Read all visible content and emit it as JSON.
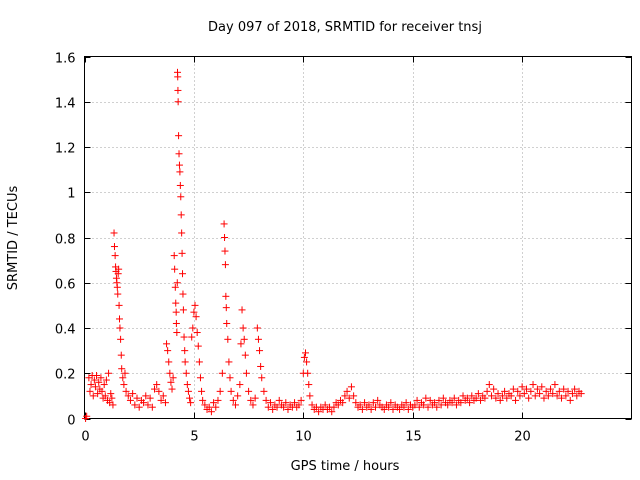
{
  "chart_data": {
    "type": "scatter",
    "title": "Day 097 of 2018, SRMTID for receiver tnsj",
    "xlabel": "GPS time / hours",
    "ylabel": "SRMTID / TECUs",
    "xlim": [
      0,
      25
    ],
    "ylim": [
      0,
      1.6
    ],
    "xticks": [
      0,
      5,
      10,
      15,
      20
    ],
    "xtick_labels": [
      "0",
      "5",
      "10",
      "15",
      "20"
    ],
    "yticks": [
      0,
      0.2,
      0.4,
      0.6,
      0.8,
      1,
      1.2,
      1.4,
      1.6
    ],
    "ytick_labels": [
      "0",
      "0.2",
      "0.4",
      "0.6",
      "0.8",
      "1",
      "1.2",
      "1.4",
      "1.6"
    ],
    "grid": true,
    "marker": "+",
    "marker_color": "#ff0000",
    "series": [
      {
        "name": "SRMTID",
        "points": [
          [
            0.05,
            0.0
          ],
          [
            0.1,
            0.01
          ],
          [
            0.2,
            0.18
          ],
          [
            0.25,
            0.12
          ],
          [
            0.3,
            0.15
          ],
          [
            0.35,
            0.19
          ],
          [
            0.4,
            0.1
          ],
          [
            0.45,
            0.17
          ],
          [
            0.5,
            0.14
          ],
          [
            0.55,
            0.19
          ],
          [
            0.6,
            0.11
          ],
          [
            0.65,
            0.16
          ],
          [
            0.7,
            0.13
          ],
          [
            0.75,
            0.18
          ],
          [
            0.8,
            0.12
          ],
          [
            0.85,
            0.09
          ],
          [
            0.9,
            0.15
          ],
          [
            0.95,
            0.1
          ],
          [
            1.0,
            0.17
          ],
          [
            1.05,
            0.08
          ],
          [
            1.1,
            0.2
          ],
          [
            1.15,
            0.07
          ],
          [
            1.2,
            0.11
          ],
          [
            1.25,
            0.09
          ],
          [
            1.3,
            0.06
          ],
          [
            1.35,
            0.82
          ],
          [
            1.37,
            0.76
          ],
          [
            1.4,
            0.72
          ],
          [
            1.42,
            0.67
          ],
          [
            1.44,
            0.65
          ],
          [
            1.46,
            0.62
          ],
          [
            1.48,
            0.6
          ],
          [
            1.5,
            0.58
          ],
          [
            1.52,
            0.55
          ],
          [
            1.54,
            0.64
          ],
          [
            1.56,
            0.66
          ],
          [
            1.58,
            0.5
          ],
          [
            1.6,
            0.44
          ],
          [
            1.62,
            0.4
          ],
          [
            1.65,
            0.35
          ],
          [
            1.68,
            0.28
          ],
          [
            1.7,
            0.22
          ],
          [
            1.75,
            0.18
          ],
          [
            1.8,
            0.15
          ],
          [
            1.85,
            0.2
          ],
          [
            1.9,
            0.12
          ],
          [
            2.0,
            0.1
          ],
          [
            2.1,
            0.08
          ],
          [
            2.2,
            0.11
          ],
          [
            2.3,
            0.06
          ],
          [
            2.4,
            0.09
          ],
          [
            2.5,
            0.05
          ],
          [
            2.6,
            0.08
          ],
          [
            2.7,
            0.07
          ],
          [
            2.8,
            0.1
          ],
          [
            2.9,
            0.06
          ],
          [
            3.0,
            0.09
          ],
          [
            3.1,
            0.05
          ],
          [
            3.2,
            0.13
          ],
          [
            3.3,
            0.15
          ],
          [
            3.4,
            0.12
          ],
          [
            3.5,
            0.08
          ],
          [
            3.6,
            0.1
          ],
          [
            3.7,
            0.07
          ],
          [
            3.75,
            0.33
          ],
          [
            3.8,
            0.3
          ],
          [
            3.85,
            0.25
          ],
          [
            3.9,
            0.2
          ],
          [
            3.95,
            0.16
          ],
          [
            4.0,
            0.13
          ],
          [
            4.05,
            0.18
          ],
          [
            4.1,
            0.72
          ],
          [
            4.12,
            0.66
          ],
          [
            4.15,
            0.58
          ],
          [
            4.17,
            0.51
          ],
          [
            4.19,
            0.47
          ],
          [
            4.2,
            0.42
          ],
          [
            4.22,
            0.38
          ],
          [
            4.24,
            0.6
          ],
          [
            4.25,
            1.53
          ],
          [
            4.26,
            1.51
          ],
          [
            4.27,
            1.45
          ],
          [
            4.28,
            1.4
          ],
          [
            4.3,
            1.25
          ],
          [
            4.32,
            1.17
          ],
          [
            4.34,
            1.12
          ],
          [
            4.36,
            1.09
          ],
          [
            4.38,
            1.03
          ],
          [
            4.4,
            0.98
          ],
          [
            4.42,
            0.9
          ],
          [
            4.44,
            0.82
          ],
          [
            4.46,
            0.73
          ],
          [
            4.48,
            0.64
          ],
          [
            4.5,
            0.55
          ],
          [
            4.52,
            0.48
          ],
          [
            4.55,
            0.36
          ],
          [
            4.58,
            0.3
          ],
          [
            4.6,
            0.25
          ],
          [
            4.65,
            0.2
          ],
          [
            4.7,
            0.15
          ],
          [
            4.75,
            0.12
          ],
          [
            4.8,
            0.09
          ],
          [
            4.85,
            0.07
          ],
          [
            4.9,
            0.36
          ],
          [
            4.95,
            0.4
          ],
          [
            5.0,
            0.47
          ],
          [
            5.05,
            0.5
          ],
          [
            5.1,
            0.45
          ],
          [
            5.15,
            0.38
          ],
          [
            5.2,
            0.32
          ],
          [
            5.25,
            0.25
          ],
          [
            5.3,
            0.18
          ],
          [
            5.35,
            0.12
          ],
          [
            5.4,
            0.08
          ],
          [
            5.5,
            0.06
          ],
          [
            5.6,
            0.04
          ],
          [
            5.7,
            0.05
          ],
          [
            5.8,
            0.03
          ],
          [
            5.9,
            0.07
          ],
          [
            6.0,
            0.05
          ],
          [
            6.1,
            0.08
          ],
          [
            6.2,
            0.12
          ],
          [
            6.3,
            0.2
          ],
          [
            6.38,
            0.86
          ],
          [
            6.4,
            0.8
          ],
          [
            6.42,
            0.74
          ],
          [
            6.44,
            0.68
          ],
          [
            6.46,
            0.54
          ],
          [
            6.48,
            0.49
          ],
          [
            6.5,
            0.42
          ],
          [
            6.55,
            0.35
          ],
          [
            6.6,
            0.25
          ],
          [
            6.65,
            0.18
          ],
          [
            6.7,
            0.12
          ],
          [
            6.8,
            0.08
          ],
          [
            6.9,
            0.06
          ],
          [
            7.0,
            0.1
          ],
          [
            7.1,
            0.15
          ],
          [
            7.15,
            0.33
          ],
          [
            7.2,
            0.48
          ],
          [
            7.25,
            0.4
          ],
          [
            7.3,
            0.35
          ],
          [
            7.35,
            0.28
          ],
          [
            7.4,
            0.2
          ],
          [
            7.5,
            0.12
          ],
          [
            7.6,
            0.08
          ],
          [
            7.7,
            0.06
          ],
          [
            7.8,
            0.09
          ],
          [
            7.9,
            0.4
          ],
          [
            7.95,
            0.35
          ],
          [
            8.0,
            0.3
          ],
          [
            8.05,
            0.23
          ],
          [
            8.1,
            0.18
          ],
          [
            8.2,
            0.12
          ],
          [
            8.3,
            0.08
          ],
          [
            8.4,
            0.05
          ],
          [
            8.5,
            0.07
          ],
          [
            8.6,
            0.04
          ],
          [
            8.7,
            0.06
          ],
          [
            8.8,
            0.05
          ],
          [
            8.9,
            0.08
          ],
          [
            9.0,
            0.06
          ],
          [
            9.1,
            0.05
          ],
          [
            9.2,
            0.07
          ],
          [
            9.3,
            0.04
          ],
          [
            9.4,
            0.06
          ],
          [
            9.5,
            0.05
          ],
          [
            9.6,
            0.07
          ],
          [
            9.7,
            0.05
          ],
          [
            9.8,
            0.06
          ],
          [
            9.9,
            0.08
          ],
          [
            10.0,
            0.2
          ],
          [
            10.05,
            0.27
          ],
          [
            10.1,
            0.29
          ],
          [
            10.15,
            0.25
          ],
          [
            10.2,
            0.2
          ],
          [
            10.25,
            0.15
          ],
          [
            10.3,
            0.1
          ],
          [
            10.4,
            0.06
          ],
          [
            10.5,
            0.04
          ],
          [
            10.6,
            0.05
          ],
          [
            10.7,
            0.03
          ],
          [
            10.8,
            0.05
          ],
          [
            10.9,
            0.04
          ],
          [
            11.0,
            0.06
          ],
          [
            11.1,
            0.04
          ],
          [
            11.2,
            0.05
          ],
          [
            11.3,
            0.03
          ],
          [
            11.4,
            0.05
          ],
          [
            11.5,
            0.07
          ],
          [
            11.6,
            0.06
          ],
          [
            11.7,
            0.08
          ],
          [
            11.8,
            0.07
          ],
          [
            11.9,
            0.1
          ],
          [
            12.0,
            0.12
          ],
          [
            12.1,
            0.09
          ],
          [
            12.2,
            0.14
          ],
          [
            12.3,
            0.1
          ],
          [
            12.4,
            0.07
          ],
          [
            12.5,
            0.05
          ],
          [
            12.6,
            0.06
          ],
          [
            12.7,
            0.04
          ],
          [
            12.8,
            0.07
          ],
          [
            12.9,
            0.05
          ],
          [
            13.0,
            0.06
          ],
          [
            13.1,
            0.04
          ],
          [
            13.2,
            0.07
          ],
          [
            13.3,
            0.05
          ],
          [
            13.4,
            0.08
          ],
          [
            13.5,
            0.06
          ],
          [
            13.6,
            0.05
          ],
          [
            13.7,
            0.04
          ],
          [
            13.8,
            0.06
          ],
          [
            13.9,
            0.05
          ],
          [
            14.0,
            0.07
          ],
          [
            14.1,
            0.04
          ],
          [
            14.2,
            0.06
          ],
          [
            14.3,
            0.05
          ],
          [
            14.4,
            0.04
          ],
          [
            14.5,
            0.06
          ],
          [
            14.6,
            0.05
          ],
          [
            14.7,
            0.07
          ],
          [
            14.8,
            0.04
          ],
          [
            14.9,
            0.06
          ],
          [
            15.0,
            0.05
          ],
          [
            15.1,
            0.06
          ],
          [
            15.2,
            0.08
          ],
          [
            15.3,
            0.05
          ],
          [
            15.4,
            0.07
          ],
          [
            15.5,
            0.06
          ],
          [
            15.6,
            0.09
          ],
          [
            15.7,
            0.05
          ],
          [
            15.8,
            0.08
          ],
          [
            15.9,
            0.06
          ],
          [
            16.0,
            0.07
          ],
          [
            16.1,
            0.05
          ],
          [
            16.2,
            0.08
          ],
          [
            16.3,
            0.06
          ],
          [
            16.4,
            0.09
          ],
          [
            16.5,
            0.07
          ],
          [
            16.6,
            0.06
          ],
          [
            16.7,
            0.08
          ],
          [
            16.8,
            0.07
          ],
          [
            16.9,
            0.09
          ],
          [
            17.0,
            0.06
          ],
          [
            17.1,
            0.08
          ],
          [
            17.2,
            0.07
          ],
          [
            17.3,
            0.1
          ],
          [
            17.4,
            0.08
          ],
          [
            17.5,
            0.09
          ],
          [
            17.6,
            0.07
          ],
          [
            17.7,
            0.1
          ],
          [
            17.8,
            0.08
          ],
          [
            17.9,
            0.09
          ],
          [
            18.0,
            0.11
          ],
          [
            18.1,
            0.08
          ],
          [
            18.2,
            0.1
          ],
          [
            18.3,
            0.09
          ],
          [
            18.4,
            0.12
          ],
          [
            18.5,
            0.15
          ],
          [
            18.6,
            0.1
          ],
          [
            18.7,
            0.13
          ],
          [
            18.8,
            0.09
          ],
          [
            18.9,
            0.11
          ],
          [
            19.0,
            0.08
          ],
          [
            19.1,
            0.1
          ],
          [
            19.2,
            0.12
          ],
          [
            19.3,
            0.09
          ],
          [
            19.4,
            0.11
          ],
          [
            19.5,
            0.1
          ],
          [
            19.6,
            0.13
          ],
          [
            19.7,
            0.08
          ],
          [
            19.8,
            0.12
          ],
          [
            19.9,
            0.1
          ],
          [
            20.0,
            0.14
          ],
          [
            20.1,
            0.11
          ],
          [
            20.2,
            0.13
          ],
          [
            20.3,
            0.09
          ],
          [
            20.4,
            0.12
          ],
          [
            20.5,
            0.15
          ],
          [
            20.6,
            0.1
          ],
          [
            20.7,
            0.13
          ],
          [
            20.8,
            0.11
          ],
          [
            20.9,
            0.14
          ],
          [
            21.0,
            0.09
          ],
          [
            21.1,
            0.12
          ],
          [
            21.2,
            0.1
          ],
          [
            21.3,
            0.13
          ],
          [
            21.4,
            0.11
          ],
          [
            21.5,
            0.15
          ],
          [
            21.6,
            0.1
          ],
          [
            21.7,
            0.12
          ],
          [
            21.8,
            0.09
          ],
          [
            21.9,
            0.13
          ],
          [
            22.0,
            0.1
          ],
          [
            22.1,
            0.12
          ],
          [
            22.2,
            0.08
          ],
          [
            22.3,
            0.11
          ],
          [
            22.4,
            0.13
          ],
          [
            22.5,
            0.1
          ],
          [
            22.6,
            0.12
          ],
          [
            22.7,
            0.11
          ]
        ]
      }
    ]
  }
}
